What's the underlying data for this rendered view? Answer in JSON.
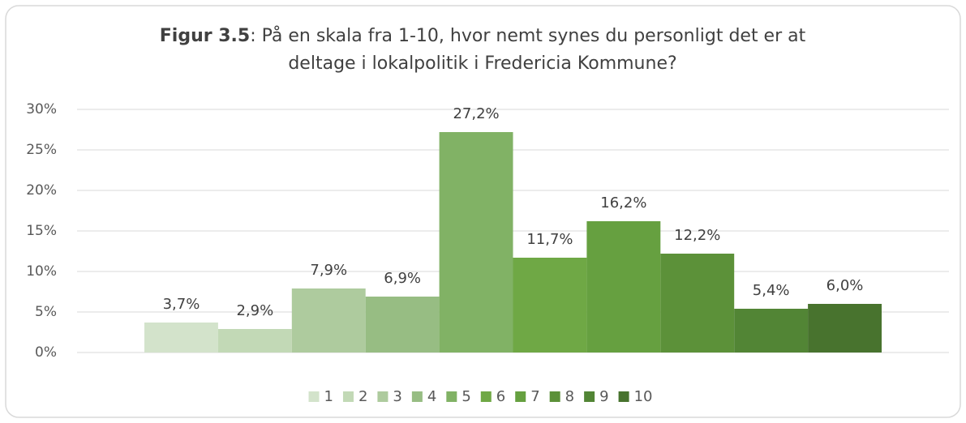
{
  "chart_data": {
    "type": "bar",
    "title_prefix": "Figur 3.5",
    "title": ": På en skala fra 1-10, hvor nemt synes du personligt det er at deltage i lokalpolitik i Fredericia Kommune?",
    "series": [
      {
        "name": "1",
        "color": "#d3e3cb",
        "values": [
          3.7
        ],
        "value_labels": [
          "3,7%"
        ]
      },
      {
        "name": "2",
        "color": "#c2d9b6",
        "values": [
          2.9
        ],
        "value_labels": [
          "2,9%"
        ]
      },
      {
        "name": "3",
        "color": "#aecb9e",
        "values": [
          7.9
        ],
        "value_labels": [
          "7,9%"
        ]
      },
      {
        "name": "4",
        "color": "#97bd83",
        "values": [
          6.9
        ],
        "value_labels": [
          "6,9%"
        ]
      },
      {
        "name": "5",
        "color": "#81b265",
        "values": [
          27.2
        ],
        "value_labels": [
          "27,2%"
        ]
      },
      {
        "name": "6",
        "color": "#6fa845",
        "values": [
          11.7
        ],
        "value_labels": [
          "11,7%"
        ]
      },
      {
        "name": "7",
        "color": "#66a040",
        "values": [
          16.2
        ],
        "value_labels": [
          "16,2%"
        ]
      },
      {
        "name": "8",
        "color": "#5c9139",
        "values": [
          12.2
        ],
        "value_labels": [
          "12,2%"
        ]
      },
      {
        "name": "9",
        "color": "#528535",
        "values": [
          5.4
        ],
        "value_labels": [
          "5,4%"
        ]
      },
      {
        "name": "10",
        "color": "#48732e",
        "values": [
          6.0
        ],
        "value_labels": [
          "6,0%"
        ]
      }
    ],
    "ylim": [
      0,
      30
    ],
    "yticks": [
      {
        "value": 0,
        "label": "0%"
      },
      {
        "value": 5,
        "label": "5%"
      },
      {
        "value": 10,
        "label": "10%"
      },
      {
        "value": 15,
        "label": "15%"
      },
      {
        "value": 20,
        "label": "20%"
      },
      {
        "value": 25,
        "label": "25%"
      },
      {
        "value": 30,
        "label": "30%"
      }
    ],
    "grid": true,
    "legend": "bottom"
  }
}
